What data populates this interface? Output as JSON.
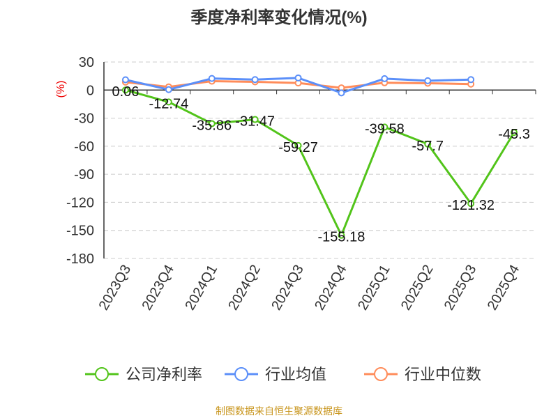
{
  "chart_data": {
    "type": "line",
    "title": "季度净利率变化情况(%)",
    "ylabel": "(%)",
    "xlabel": "",
    "ylim": [
      -180,
      30
    ],
    "yticks": [
      30,
      0,
      -30,
      -60,
      -90,
      -120,
      -150,
      -180
    ],
    "grid": true,
    "legend_position": "bottom",
    "categories": [
      "2023Q3",
      "2023Q4",
      "2024Q1",
      "2024Q2",
      "2024Q3",
      "2024Q4",
      "2025Q1",
      "2025Q2",
      "2025Q3",
      "2025Q4"
    ],
    "series": [
      {
        "name": "公司净利率",
        "color": "#52c41a",
        "values": [
          0.06,
          -12.74,
          -35.86,
          -31.47,
          -59.27,
          -155.18,
          -39.58,
          -57.7,
          -121.32,
          -45.3
        ],
        "labels": [
          "0.06",
          "-12.74",
          "-35.86",
          "-31.47",
          "-59.27",
          "-155.18",
          "-39.58",
          "-57.7",
          "-121.32",
          "-45.3"
        ]
      },
      {
        "name": "行业均值",
        "color": "#5b8ff9",
        "values": [
          11,
          0.5,
          12.4,
          11.2,
          13,
          -3,
          12.2,
          10,
          11.2,
          null
        ]
      },
      {
        "name": "行业中位数",
        "color": "#ff8c5a",
        "values": [
          8.5,
          3.4,
          9.5,
          8.8,
          7.6,
          2.4,
          7.8,
          7.3,
          6.4,
          null
        ]
      }
    ]
  },
  "footer": "制图数据来自恒生聚源数据库"
}
